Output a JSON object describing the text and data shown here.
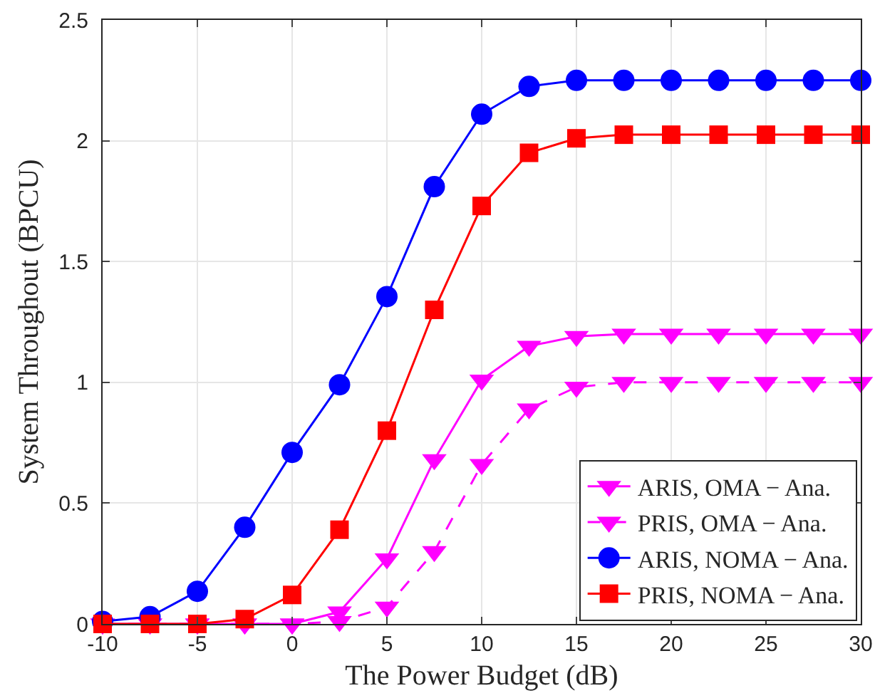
{
  "chart_data": {
    "type": "line",
    "xlabel": "The Power Budget (dB)",
    "ylabel": "System Throughout (BPCU)",
    "x": [
      -10,
      -7.5,
      -5,
      -2.5,
      0,
      2.5,
      5,
      7.5,
      10,
      12.5,
      15,
      17.5,
      20,
      22.5,
      25,
      27.5,
      30
    ],
    "xlim": [
      -10,
      30
    ],
    "xticks": [
      -10,
      -5,
      0,
      5,
      10,
      15,
      20,
      25,
      30
    ],
    "ylim": [
      0,
      2.5
    ],
    "yticks": [
      0,
      0.5,
      1,
      1.5,
      2,
      2.5
    ],
    "grid": true,
    "legend": "bottom right",
    "series": [
      {
        "name": "ARIS, OMA − Ana.",
        "color": "#ff00ff",
        "marker": "triangle",
        "line_style": "solid",
        "values": [
          0,
          0,
          0,
          0,
          0,
          0.05,
          0.27,
          0.68,
          1.01,
          1.15,
          1.19,
          1.2,
          1.2,
          1.2,
          1.2,
          1.2,
          1.2
        ]
      },
      {
        "name": "PRIS, OMA − Ana.",
        "color": "#ff00ff",
        "marker": "triangle",
        "line_style": "dashed",
        "values": [
          0,
          0,
          0,
          0,
          0,
          0.01,
          0.07,
          0.3,
          0.66,
          0.89,
          0.98,
          1.0,
          1.0,
          1.0,
          1.0,
          1.0,
          1.0
        ]
      },
      {
        "name": "ARIS, NOMA − Ana.",
        "color": "#0000ff",
        "marker": "circle",
        "line_style": "solid",
        "values": [
          0.01,
          0.03,
          0.135,
          0.4,
          0.71,
          0.99,
          1.355,
          1.81,
          2.11,
          2.225,
          2.25,
          2.25,
          2.25,
          2.25,
          2.25,
          2.25,
          2.25
        ]
      },
      {
        "name": "PRIS, NOMA − Ana.",
        "color": "#ff0000",
        "marker": "square",
        "line_style": "solid",
        "values": [
          0,
          0,
          0,
          0.02,
          0.12,
          0.39,
          0.8,
          1.3,
          1.73,
          1.95,
          2.01,
          2.025,
          2.025,
          2.025,
          2.025,
          2.025,
          2.025
        ]
      }
    ]
  }
}
